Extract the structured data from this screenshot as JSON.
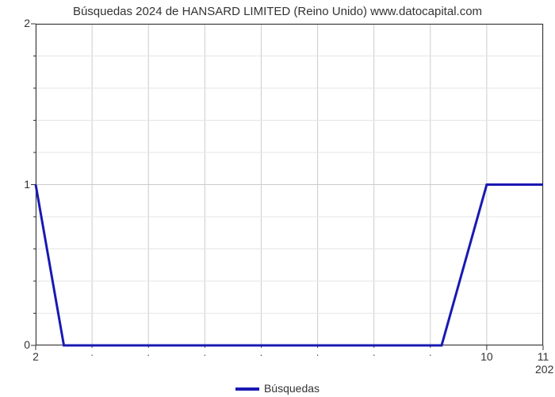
{
  "chart": {
    "type": "line",
    "title": "Búsquedas 2024 de HANSARD LIMITED (Reino Unido) www.datocapital.com",
    "title_fontsize": 15,
    "title_color": "#333333",
    "background_color": "#ffffff",
    "plot_border_color": "#333333",
    "grid_color": "#cccccc",
    "grid_minor_color": "#e5e5e5",
    "line_color": "#1919b3",
    "line_width": 3,
    "xlim": [
      2,
      11
    ],
    "ylim": [
      0,
      2
    ],
    "x_major_ticks": [
      2,
      10,
      11
    ],
    "x_minor_ticks": [
      3,
      4,
      5,
      6,
      7,
      8,
      9
    ],
    "x_sublabel": "202",
    "y_major_ticks": [
      0,
      1,
      2
    ],
    "y_minor_count": 4,
    "x_data": [
      2,
      2.5,
      9.2,
      10,
      11
    ],
    "y_data": [
      1,
      0,
      0,
      1,
      1
    ],
    "legend_label": "Búsquedas",
    "legend_fontsize": 14,
    "label_fontsize": 14
  }
}
